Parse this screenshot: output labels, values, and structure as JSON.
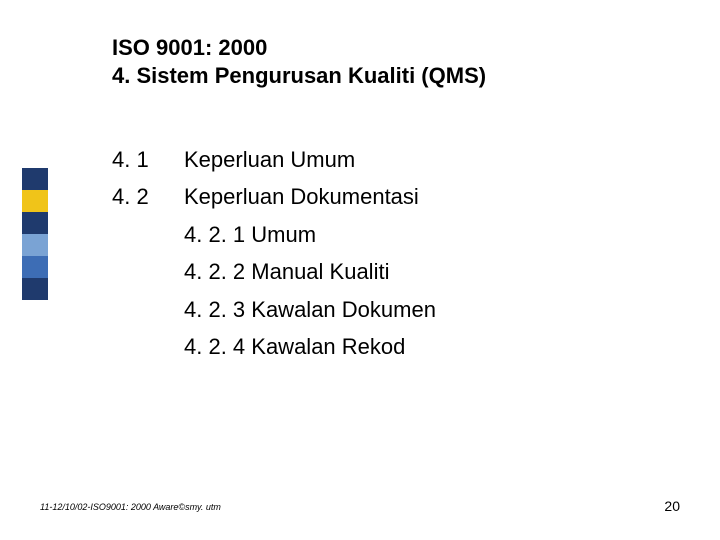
{
  "title": {
    "line1": "ISO 9001: 2000",
    "line2": "4. Sistem Pengurusan Kualiti (QMS)"
  },
  "outline": {
    "numbers": [
      "4. 1",
      "4. 2"
    ],
    "items": [
      "Keperluan Umum",
      "Keperluan Dokumentasi",
      "4. 2. 1 Umum",
      "4. 2. 2 Manual Kualiti",
      "4. 2. 3 Kawalan Dokumen",
      "4. 2. 4 Kawalan Rekod"
    ]
  },
  "sidebar_colors": [
    "#1f3a6d",
    "#f0c419",
    "#1f3a6d",
    "#7aa3d4",
    "#3d6db5",
    "#1f3a6d"
  ],
  "footer_text": "11-12/10/02-ISO9001: 2000 Aware©smy. utm",
  "page_number": "20",
  "text_color": "#000000",
  "background_color": "#ffffff",
  "title_fontsize": 22,
  "body_fontsize": 22,
  "footer_fontsize": 9,
  "pagenum_fontsize": 14
}
